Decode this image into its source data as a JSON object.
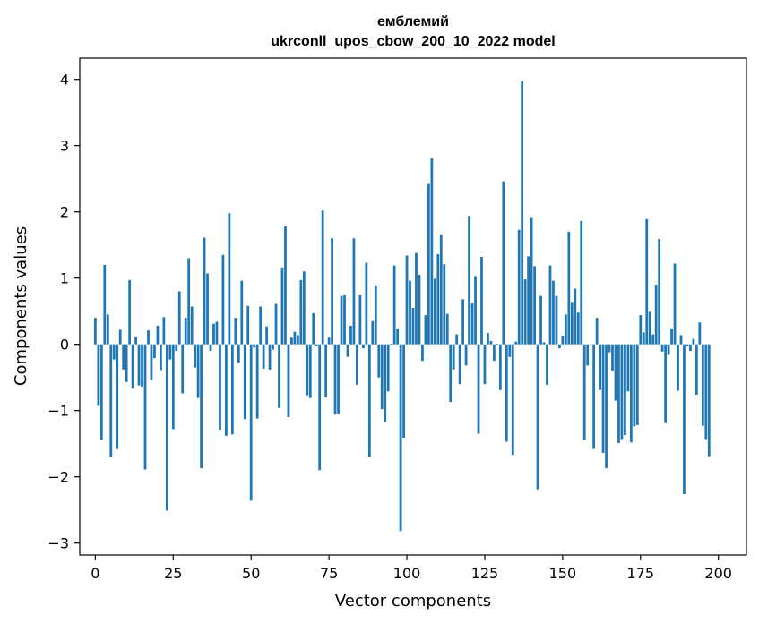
{
  "chart_data": {
    "type": "bar",
    "title": "емблемий",
    "subtitle": "ukrconll_upos_cbow_200_10_2022 model",
    "xlabel": "Vector components",
    "ylabel": "Components values",
    "xlim": [
      -5,
      209
    ],
    "ylim": [
      -3.18,
      4.32
    ],
    "xticks": [
      0,
      25,
      50,
      75,
      100,
      125,
      150,
      175,
      200
    ],
    "yticks": [
      -3,
      -2,
      -1,
      0,
      1,
      2,
      3,
      4
    ],
    "bar_color": "#1f77b4",
    "grid": false,
    "values": [
      0.4,
      -0.93,
      -1.44,
      1.2,
      0.45,
      -1.7,
      -0.23,
      -1.58,
      0.22,
      -0.38,
      -0.57,
      0.97,
      -0.67,
      0.12,
      -0.62,
      -0.64,
      -1.89,
      0.21,
      -0.53,
      -0.21,
      0.28,
      -0.39,
      0.41,
      -2.51,
      -0.23,
      -1.28,
      -0.1,
      0.8,
      -0.74,
      0.4,
      1.3,
      0.57,
      -0.35,
      -0.81,
      -1.87,
      1.61,
      1.07,
      -0.1,
      0.31,
      0.34,
      -1.29,
      1.35,
      -1.38,
      1.98,
      -1.36,
      0.4,
      -0.28,
      0.96,
      -1.13,
      0.58,
      -2.36,
      -0.05,
      -1.12,
      0.57,
      -0.37,
      0.27,
      -0.38,
      -0.08,
      0.61,
      -0.96,
      1.16,
      1.78,
      -1.1,
      0.1,
      0.19,
      0.14,
      0.97,
      1.1,
      -0.77,
      -0.81,
      0.47,
      -0.02,
      -1.9,
      2.02,
      -0.8,
      0.1,
      1.6,
      -1.06,
      -1.05,
      0.73,
      0.74,
      -0.19,
      0.28,
      1.6,
      -0.61,
      0.74,
      -0.06,
      1.23,
      -1.7,
      0.35,
      0.89,
      -0.5,
      -0.98,
      -1.18,
      -0.71,
      0.01,
      1.19,
      0.24,
      -2.82,
      -1.41,
      1.34,
      0.96,
      0.55,
      1.38,
      1.05,
      -0.25,
      0.44,
      2.42,
      2.81,
      0.99,
      1.36,
      1.66,
      1.21,
      0.46,
      -0.87,
      -0.38,
      0.15,
      -0.6,
      0.68,
      -0.32,
      1.94,
      0.62,
      1.03,
      -1.35,
      1.32,
      -0.6,
      0.17,
      0.05,
      -0.25,
      0.01,
      -0.69,
      2.46,
      -1.47,
      -0.19,
      -1.67,
      0.04,
      1.73,
      3.97,
      0.98,
      1.33,
      1.92,
      1.18,
      -2.19,
      0.73,
      0.03,
      -0.61,
      1.19,
      0.96,
      0.73,
      -0.06,
      0.13,
      0.45,
      1.7,
      0.64,
      0.84,
      0.48,
      1.86,
      -1.45,
      -0.32,
      0.0,
      -1.58,
      0.4,
      -0.69,
      -1.64,
      -1.87,
      -0.12,
      -0.4,
      -0.85,
      -1.49,
      -1.43,
      -1.37,
      -0.71,
      -1.48,
      -1.24,
      -1.22,
      0.44,
      0.18,
      1.89,
      0.49,
      0.15,
      0.9,
      1.59,
      -0.11,
      -1.19,
      -0.16,
      0.24,
      1.22,
      -0.7,
      0.14,
      -2.26,
      -0.03,
      -0.1,
      0.08,
      -0.76,
      0.33,
      -1.23,
      -1.43,
      -1.69
    ]
  }
}
